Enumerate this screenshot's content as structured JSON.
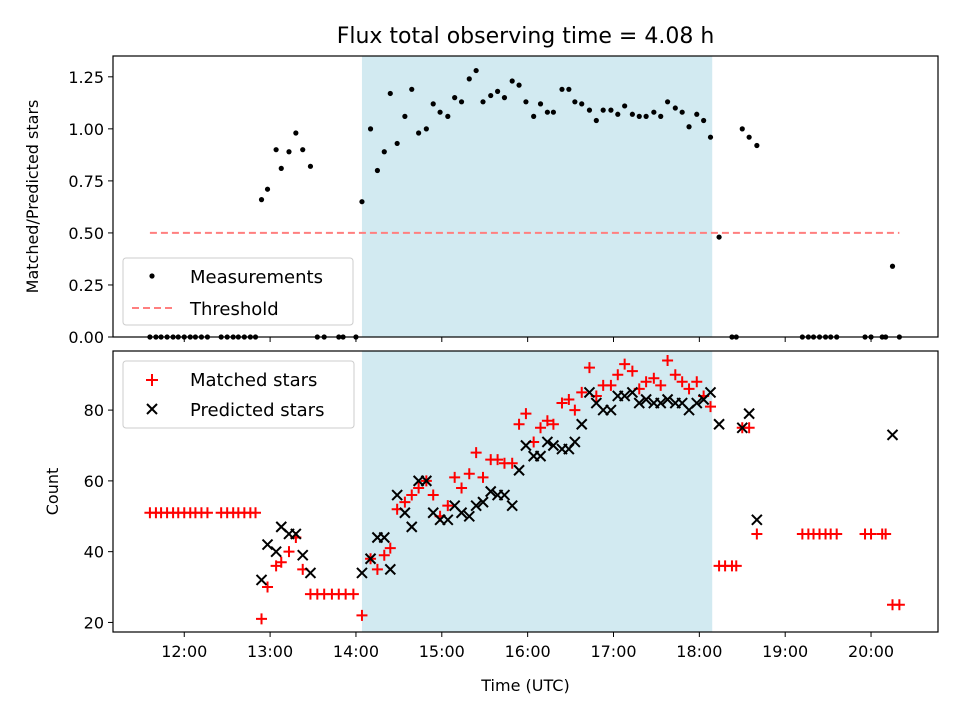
{
  "chart_data": [
    {
      "type": "scatter",
      "title": "Flux total observing time = 4.08 h",
      "xlabel": "",
      "ylabel": "Matched/Predicted stars",
      "ylim": [
        0,
        1.35
      ],
      "yticks": [
        0.0,
        0.25,
        0.5,
        0.75,
        1.0,
        1.25
      ],
      "ytick_labels": [
        "0.00",
        "0.25",
        "0.50",
        "0.75",
        "1.00",
        "1.25"
      ],
      "xlim": [
        11.17,
        20.78
      ],
      "shaded_interval": [
        14.07,
        18.15
      ],
      "shade_color": "#add8e6",
      "threshold": {
        "name": "Threshold",
        "value": 0.5,
        "x_range": [
          11.6,
          20.33
        ],
        "color": "#ff7f7f"
      },
      "legend": [
        "Measurements",
        "Threshold"
      ],
      "series": [
        {
          "name": "Measurements",
          "color": "#000000",
          "points": [
            [
              11.6,
              0
            ],
            [
              11.67,
              0
            ],
            [
              11.73,
              0
            ],
            [
              11.8,
              0
            ],
            [
              11.87,
              0
            ],
            [
              11.93,
              0
            ],
            [
              12.0,
              0
            ],
            [
              12.07,
              0
            ],
            [
              12.13,
              0
            ],
            [
              12.2,
              0
            ],
            [
              12.27,
              0
            ],
            [
              12.43,
              0
            ],
            [
              12.5,
              0
            ],
            [
              12.57,
              0
            ],
            [
              12.63,
              0
            ],
            [
              12.7,
              0
            ],
            [
              12.77,
              0
            ],
            [
              12.83,
              0
            ],
            [
              12.9,
              0.66
            ],
            [
              12.97,
              0.71
            ],
            [
              13.07,
              0.9
            ],
            [
              13.13,
              0.81
            ],
            [
              13.22,
              0.89
            ],
            [
              13.3,
              0.98
            ],
            [
              13.38,
              0.9
            ],
            [
              13.47,
              0.82
            ],
            [
              13.55,
              0
            ],
            [
              13.63,
              0
            ],
            [
              13.8,
              0
            ],
            [
              13.85,
              0
            ],
            [
              14.0,
              0
            ],
            [
              14.07,
              0.65
            ],
            [
              14.17,
              1.0
            ],
            [
              14.25,
              0.8
            ],
            [
              14.33,
              0.89
            ],
            [
              14.4,
              1.17
            ],
            [
              14.48,
              0.93
            ],
            [
              14.57,
              1.06
            ],
            [
              14.65,
              1.19
            ],
            [
              14.73,
              0.98
            ],
            [
              14.82,
              1.0
            ],
            [
              14.9,
              1.12
            ],
            [
              14.98,
              1.08
            ],
            [
              15.07,
              1.06
            ],
            [
              15.15,
              1.15
            ],
            [
              15.23,
              1.13
            ],
            [
              15.32,
              1.24
            ],
            [
              15.4,
              1.28
            ],
            [
              15.48,
              1.13
            ],
            [
              15.57,
              1.16
            ],
            [
              15.65,
              1.18
            ],
            [
              15.73,
              1.15
            ],
            [
              15.82,
              1.23
            ],
            [
              15.9,
              1.21
            ],
            [
              15.98,
              1.13
            ],
            [
              16.07,
              1.06
            ],
            [
              16.15,
              1.12
            ],
            [
              16.23,
              1.08
            ],
            [
              16.3,
              1.08
            ],
            [
              16.4,
              1.19
            ],
            [
              16.48,
              1.19
            ],
            [
              16.55,
              1.13
            ],
            [
              16.63,
              1.12
            ],
            [
              16.72,
              1.09
            ],
            [
              16.8,
              1.04
            ],
            [
              16.88,
              1.09
            ],
            [
              16.97,
              1.09
            ],
            [
              17.05,
              1.07
            ],
            [
              17.13,
              1.11
            ],
            [
              17.22,
              1.07
            ],
            [
              17.3,
              1.06
            ],
            [
              17.38,
              1.06
            ],
            [
              17.47,
              1.08
            ],
            [
              17.55,
              1.06
            ],
            [
              17.63,
              1.13
            ],
            [
              17.72,
              1.1
            ],
            [
              17.8,
              1.08
            ],
            [
              17.88,
              1.01
            ],
            [
              17.97,
              1.07
            ],
            [
              18.05,
              1.04
            ],
            [
              18.13,
              0.96
            ],
            [
              18.23,
              0.48
            ],
            [
              18.38,
              0
            ],
            [
              18.43,
              0
            ],
            [
              18.5,
              1.0
            ],
            [
              18.58,
              0.96
            ],
            [
              18.67,
              0.92
            ],
            [
              19.2,
              0
            ],
            [
              19.27,
              0
            ],
            [
              19.33,
              0
            ],
            [
              19.4,
              0
            ],
            [
              19.47,
              0
            ],
            [
              19.53,
              0
            ],
            [
              19.6,
              0
            ],
            [
              19.93,
              0
            ],
            [
              20.0,
              0
            ],
            [
              20.13,
              0
            ],
            [
              20.17,
              0
            ],
            [
              20.25,
              0.34
            ],
            [
              20.33,
              0
            ]
          ]
        }
      ]
    },
    {
      "type": "scatter",
      "title": "",
      "xlabel": "Time (UTC)",
      "ylabel": "Count",
      "ylim": [
        17.3,
        96.7
      ],
      "yticks": [
        20,
        40,
        60,
        80
      ],
      "ytick_labels": [
        "20",
        "40",
        "60",
        "80"
      ],
      "xlim": [
        11.17,
        20.78
      ],
      "xticks": [
        12,
        13,
        14,
        15,
        16,
        17,
        18,
        19,
        20
      ],
      "xtick_labels": [
        "12:00",
        "13:00",
        "14:00",
        "15:00",
        "16:00",
        "17:00",
        "18:00",
        "19:00",
        "20:00"
      ],
      "shaded_interval": [
        14.07,
        18.15
      ],
      "shade_color": "#add8e6",
      "legend": [
        "Matched stars",
        "Predicted stars"
      ],
      "series": [
        {
          "name": "Matched stars",
          "marker": "plus",
          "color": "#ff0000",
          "points": [
            [
              11.6,
              51
            ],
            [
              11.67,
              51
            ],
            [
              11.73,
              51
            ],
            [
              11.8,
              51
            ],
            [
              11.87,
              51
            ],
            [
              11.93,
              51
            ],
            [
              12.0,
              51
            ],
            [
              12.07,
              51
            ],
            [
              12.13,
              51
            ],
            [
              12.2,
              51
            ],
            [
              12.27,
              51
            ],
            [
              12.43,
              51
            ],
            [
              12.5,
              51
            ],
            [
              12.57,
              51
            ],
            [
              12.63,
              51
            ],
            [
              12.7,
              51
            ],
            [
              12.77,
              51
            ],
            [
              12.83,
              51
            ],
            [
              12.9,
              21
            ],
            [
              12.97,
              30
            ],
            [
              13.07,
              36
            ],
            [
              13.13,
              37
            ],
            [
              13.22,
              40
            ],
            [
              13.3,
              44
            ],
            [
              13.38,
              35
            ],
            [
              13.47,
              28
            ],
            [
              13.55,
              28
            ],
            [
              13.63,
              28
            ],
            [
              13.72,
              28
            ],
            [
              13.8,
              28
            ],
            [
              13.88,
              28
            ],
            [
              13.97,
              28
            ],
            [
              14.07,
              22
            ],
            [
              14.17,
              38
            ],
            [
              14.25,
              35
            ],
            [
              14.33,
              39
            ],
            [
              14.4,
              41
            ],
            [
              14.48,
              52
            ],
            [
              14.57,
              54
            ],
            [
              14.65,
              56
            ],
            [
              14.73,
              58
            ],
            [
              14.82,
              60
            ],
            [
              14.9,
              56
            ],
            [
              14.98,
              50
            ],
            [
              15.07,
              53
            ],
            [
              15.15,
              61
            ],
            [
              15.23,
              58
            ],
            [
              15.32,
              62
            ],
            [
              15.4,
              68
            ],
            [
              15.48,
              61
            ],
            [
              15.57,
              66
            ],
            [
              15.65,
              66
            ],
            [
              15.73,
              65
            ],
            [
              15.82,
              65
            ],
            [
              15.9,
              76
            ],
            [
              15.98,
              79
            ],
            [
              16.07,
              71
            ],
            [
              16.15,
              75
            ],
            [
              16.23,
              77
            ],
            [
              16.3,
              76
            ],
            [
              16.4,
              82
            ],
            [
              16.48,
              83
            ],
            [
              16.55,
              80
            ],
            [
              16.63,
              85
            ],
            [
              16.72,
              92
            ],
            [
              16.8,
              84
            ],
            [
              16.88,
              87
            ],
            [
              16.97,
              87
            ],
            [
              17.05,
              90
            ],
            [
              17.13,
              93
            ],
            [
              17.22,
              91
            ],
            [
              17.3,
              86
            ],
            [
              17.38,
              88
            ],
            [
              17.47,
              89
            ],
            [
              17.55,
              87
            ],
            [
              17.63,
              94
            ],
            [
              17.72,
              90
            ],
            [
              17.8,
              88
            ],
            [
              17.88,
              86
            ],
            [
              17.97,
              88
            ],
            [
              18.05,
              84
            ],
            [
              18.13,
              81
            ],
            [
              18.23,
              36
            ],
            [
              18.3,
              36
            ],
            [
              18.38,
              36
            ],
            [
              18.43,
              36
            ],
            [
              18.5,
              75
            ],
            [
              18.58,
              75
            ],
            [
              18.67,
              45
            ],
            [
              19.2,
              45
            ],
            [
              19.27,
              45
            ],
            [
              19.33,
              45
            ],
            [
              19.4,
              45
            ],
            [
              19.47,
              45
            ],
            [
              19.53,
              45
            ],
            [
              19.6,
              45
            ],
            [
              19.93,
              45
            ],
            [
              20.0,
              45
            ],
            [
              20.13,
              45
            ],
            [
              20.17,
              45
            ],
            [
              20.25,
              25
            ],
            [
              20.33,
              25
            ]
          ]
        },
        {
          "name": "Predicted stars",
          "marker": "x",
          "color": "#000000",
          "points": [
            [
              12.9,
              32
            ],
            [
              12.97,
              42
            ],
            [
              13.07,
              40
            ],
            [
              13.13,
              47
            ],
            [
              13.22,
              45
            ],
            [
              13.3,
              45
            ],
            [
              13.38,
              39
            ],
            [
              13.47,
              34
            ],
            [
              14.07,
              34
            ],
            [
              14.17,
              38
            ],
            [
              14.25,
              44
            ],
            [
              14.33,
              44
            ],
            [
              14.4,
              35
            ],
            [
              14.48,
              56
            ],
            [
              14.57,
              51
            ],
            [
              14.65,
              47
            ],
            [
              14.73,
              60
            ],
            [
              14.82,
              60
            ],
            [
              14.9,
              51
            ],
            [
              14.98,
              49
            ],
            [
              15.07,
              49
            ],
            [
              15.15,
              53
            ],
            [
              15.23,
              51
            ],
            [
              15.32,
              50
            ],
            [
              15.4,
              53
            ],
            [
              15.48,
              54
            ],
            [
              15.57,
              57
            ],
            [
              15.65,
              56
            ],
            [
              15.73,
              56
            ],
            [
              15.82,
              53
            ],
            [
              15.9,
              63
            ],
            [
              15.98,
              70
            ],
            [
              16.07,
              67
            ],
            [
              16.15,
              67
            ],
            [
              16.23,
              71
            ],
            [
              16.3,
              70
            ],
            [
              16.4,
              69
            ],
            [
              16.48,
              69
            ],
            [
              16.55,
              71
            ],
            [
              16.63,
              76
            ],
            [
              16.72,
              85
            ],
            [
              16.8,
              82
            ],
            [
              16.88,
              80
            ],
            [
              16.97,
              80
            ],
            [
              17.05,
              84
            ],
            [
              17.13,
              84
            ],
            [
              17.22,
              85
            ],
            [
              17.3,
              82
            ],
            [
              17.38,
              83
            ],
            [
              17.47,
              82
            ],
            [
              17.55,
              82
            ],
            [
              17.63,
              83
            ],
            [
              17.72,
              82
            ],
            [
              17.8,
              82
            ],
            [
              17.88,
              80
            ],
            [
              17.97,
              82
            ],
            [
              18.05,
              83
            ],
            [
              18.13,
              85
            ],
            [
              18.23,
              76
            ],
            [
              18.5,
              75
            ],
            [
              18.58,
              79
            ],
            [
              18.67,
              49
            ],
            [
              20.25,
              73
            ]
          ]
        }
      ]
    }
  ]
}
